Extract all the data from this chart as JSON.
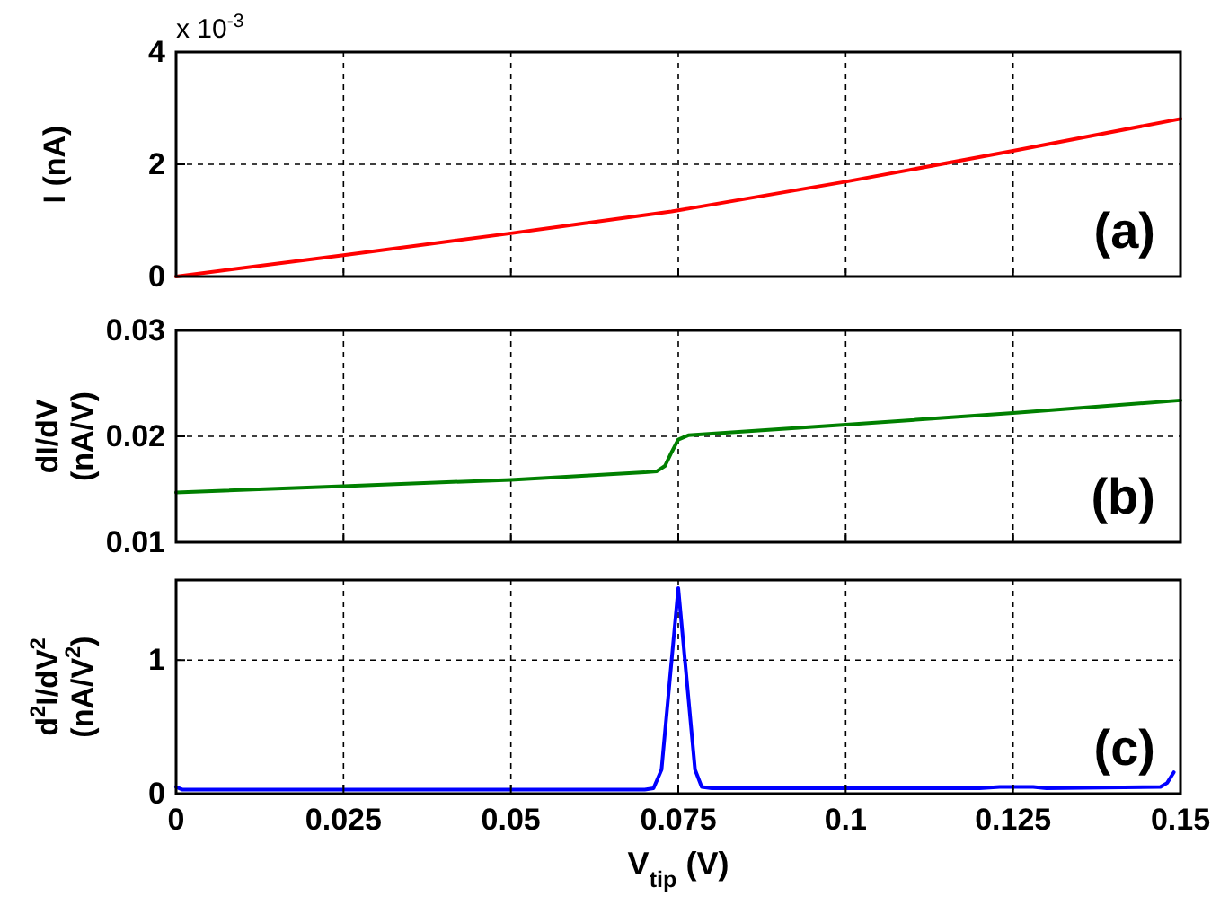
{
  "chart_data": [
    {
      "type": "line",
      "ylabel": "I (nA)",
      "xlim": [
        0,
        0.15
      ],
      "xticks": [
        0,
        0.025,
        0.05,
        0.075,
        0.1,
        0.125,
        0.15
      ],
      "ylim": [
        0,
        4
      ],
      "yticks": [
        0,
        2,
        4
      ],
      "grid": true,
      "tick_labels": "y",
      "annotations": [
        "x 10$^{-3}$",
        "(a)"
      ],
      "series": [
        {
          "color": "#ff0000",
          "x": [
            0,
            0.025,
            0.05,
            0.074,
            0.0765,
            0.1,
            0.125,
            0.15
          ],
          "values": [
            0,
            0.38,
            0.77,
            1.16,
            1.21,
            1.69,
            2.24,
            2.81
          ]
        }
      ]
    },
    {
      "type": "line",
      "ylabel": "dI/dV (nA/V)",
      "xlim": [
        0,
        0.15
      ],
      "xticks": [
        0,
        0.025,
        0.05,
        0.075,
        0.1,
        0.125,
        0.15
      ],
      "ylim": [
        0.01,
        0.03
      ],
      "yticks": [
        0.01,
        0.02,
        0.03
      ],
      "grid": true,
      "tick_labels": "y",
      "annotations": [
        "(b)"
      ],
      "series": [
        {
          "color": "#008000",
          "x": [
            0,
            0.025,
            0.05,
            0.07,
            0.0718,
            0.073,
            0.074,
            0.075,
            0.0765,
            0.1,
            0.125,
            0.15
          ],
          "values": [
            0.0147,
            0.0153,
            0.0159,
            0.0166,
            0.0167,
            0.0172,
            0.0185,
            0.0197,
            0.0201,
            0.0211,
            0.0222,
            0.0234
          ]
        }
      ]
    },
    {
      "type": "line",
      "xlabel": "V$_{tip}$ (V)",
      "ylabel": "d$^{2}$I/dV$^{2}$ (nA/V$^{2}$)",
      "xlim": [
        0,
        0.15
      ],
      "xticks": [
        0,
        0.025,
        0.05,
        0.075,
        0.1,
        0.125,
        0.15
      ],
      "ylim": [
        0,
        1.6
      ],
      "yticks": [
        0,
        1
      ],
      "grid": true,
      "annotations": [
        "(c)"
      ],
      "series": [
        {
          "color": "#0000ff",
          "x": [
            0,
            0.001,
            0.07,
            0.0713,
            0.0725,
            0.075,
            0.0775,
            0.0785,
            0.08,
            0.12,
            0.123,
            0.128,
            0.13,
            0.147,
            0.148,
            0.149
          ],
          "values": [
            0.05,
            0.03,
            0.03,
            0.04,
            0.18,
            1.54,
            0.18,
            0.05,
            0.04,
            0.04,
            0.05,
            0.05,
            0.04,
            0.05,
            0.08,
            0.16
          ]
        }
      ]
    }
  ]
}
